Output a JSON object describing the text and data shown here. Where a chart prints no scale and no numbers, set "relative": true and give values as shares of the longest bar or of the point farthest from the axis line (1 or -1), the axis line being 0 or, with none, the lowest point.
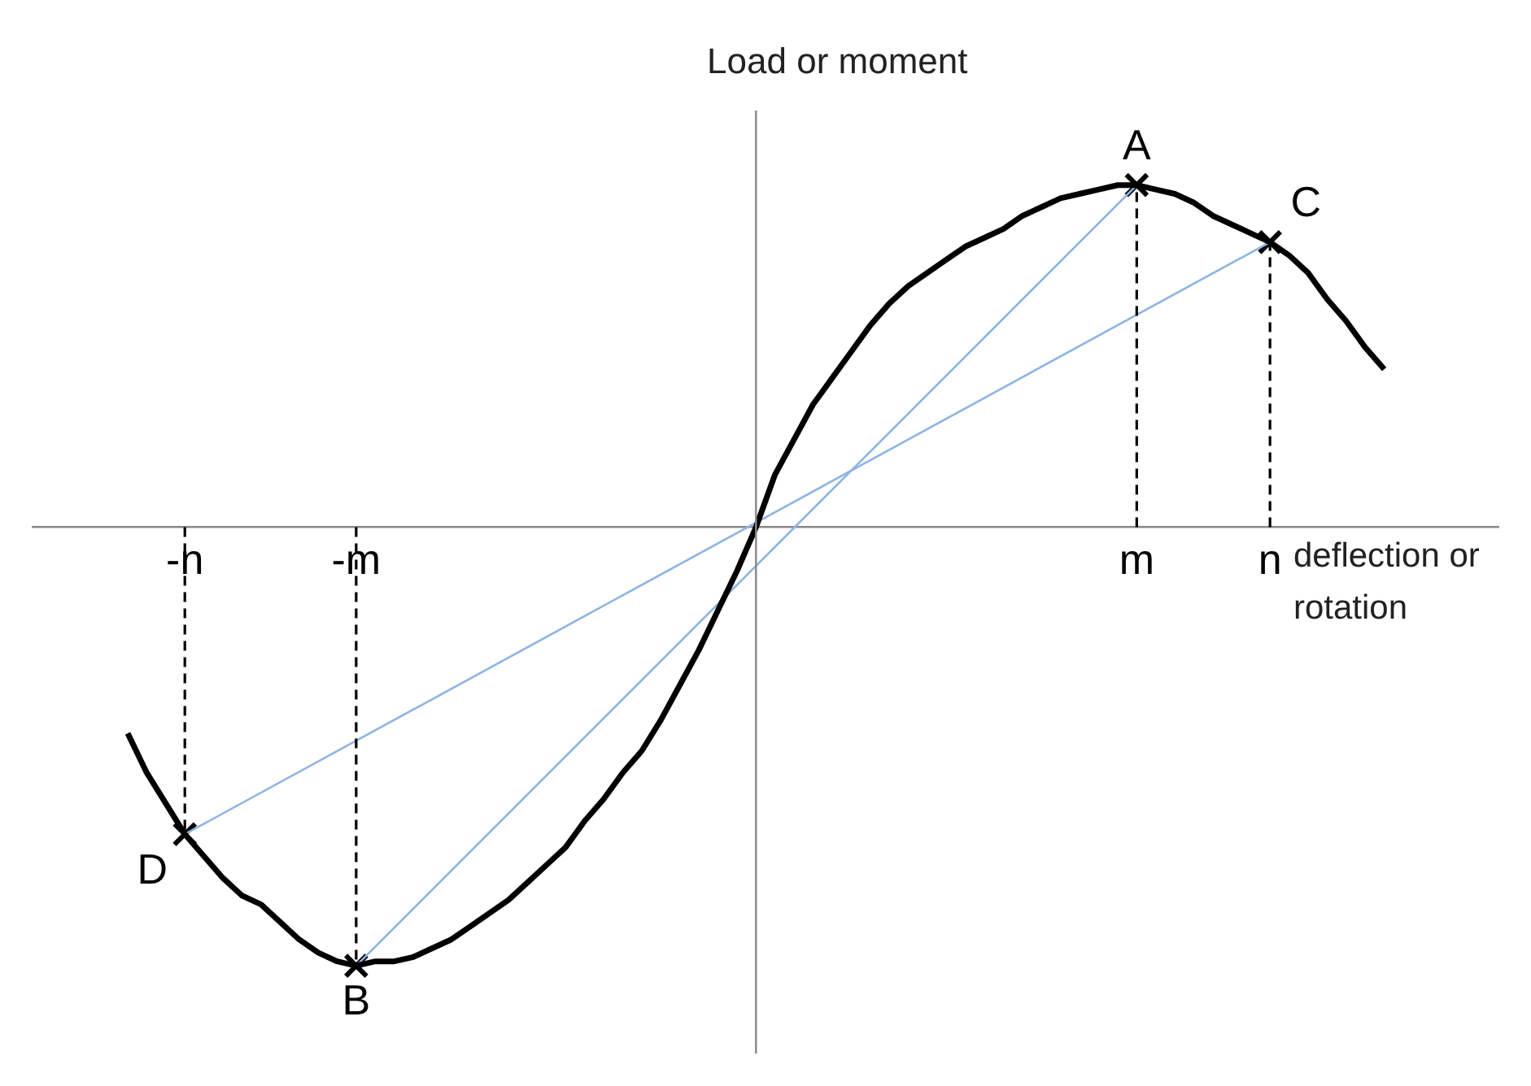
{
  "chart_data": {
    "type": "line",
    "relative": true,
    "xlabel": "deflection or rotation",
    "ylabel": "Load or moment",
    "categories": [
      null,
      null,
      null,
      null,
      null,
      null,
      null,
      null,
      "-n",
      null,
      null,
      null,
      null,
      null,
      null,
      null,
      null,
      "-m",
      null,
      null,
      null,
      null,
      null,
      null,
      null,
      null,
      null,
      null,
      null,
      null,
      null,
      null,
      null,
      null,
      null,
      null,
      null,
      null,
      null,
      null,
      null,
      null,
      null,
      null,
      null,
      null,
      null,
      null,
      null,
      null,
      null,
      null,
      null,
      null,
      null,
      null,
      null,
      null,
      "m",
      null,
      null,
      null,
      null,
      null,
      null,
      "n",
      null,
      null,
      null,
      null,
      null,
      null,
      null,
      null,
      null,
      null,
      null,
      null
    ],
    "series": [
      {
        "type": "line",
        "color": "#000000",
        "values": [
          null,
          null,
          null,
          null,
          null,
          -0.47,
          -0.56,
          -0.63,
          -0.7,
          -0.75,
          -0.8,
          -0.84,
          -0.86,
          -0.9,
          -0.94,
          -0.97,
          -0.99,
          -1,
          -0.99,
          -0.99,
          -0.98,
          -0.96,
          -0.94,
          -0.91,
          -0.88,
          -0.85,
          -0.81,
          -0.77,
          -0.73,
          -0.67,
          -0.62,
          -0.56,
          -0.51,
          -0.44,
          -0.36,
          -0.28,
          -0.19,
          -0.1,
          0,
          0.12,
          0.2,
          0.28,
          0.34,
          0.4,
          0.46,
          0.51,
          0.55,
          0.58,
          0.61,
          0.64,
          0.66,
          0.68,
          0.71,
          0.73,
          0.75,
          0.76,
          0.77,
          0.78,
          0.78,
          0.77,
          0.76,
          0.74,
          0.71,
          0.69,
          0.67,
          0.65,
          0.62,
          0.58,
          0.52,
          0.47,
          0.41,
          0.36,
          null,
          null,
          null,
          null,
          null,
          null
        ]
      },
      {
        "type": "line",
        "color": "#8eb4e3",
        "x": [
          "-m",
          "m"
        ],
        "values": [
          -1,
          0.78
        ]
      },
      {
        "type": "line",
        "color": "#8eb4e3",
        "x": [
          "-n",
          "n"
        ],
        "values": [
          -0.7,
          0.65
        ]
      },
      {
        "type": "scatter",
        "color": "#000000",
        "marker": "cross",
        "x": [
          "-n",
          "-m",
          "m",
          "n"
        ],
        "values": [
          -0.7,
          -1,
          0.78,
          0.65
        ]
      }
    ],
    "annotations": [
      {
        "text": "A",
        "x": "m",
        "y": 0.78
      },
      {
        "text": "B",
        "x": "-m",
        "y": -1
      },
      {
        "text": "C",
        "x": "n",
        "y": 0.65
      },
      {
        "text": "D",
        "x": "-n",
        "y": -0.7
      }
    ]
  }
}
